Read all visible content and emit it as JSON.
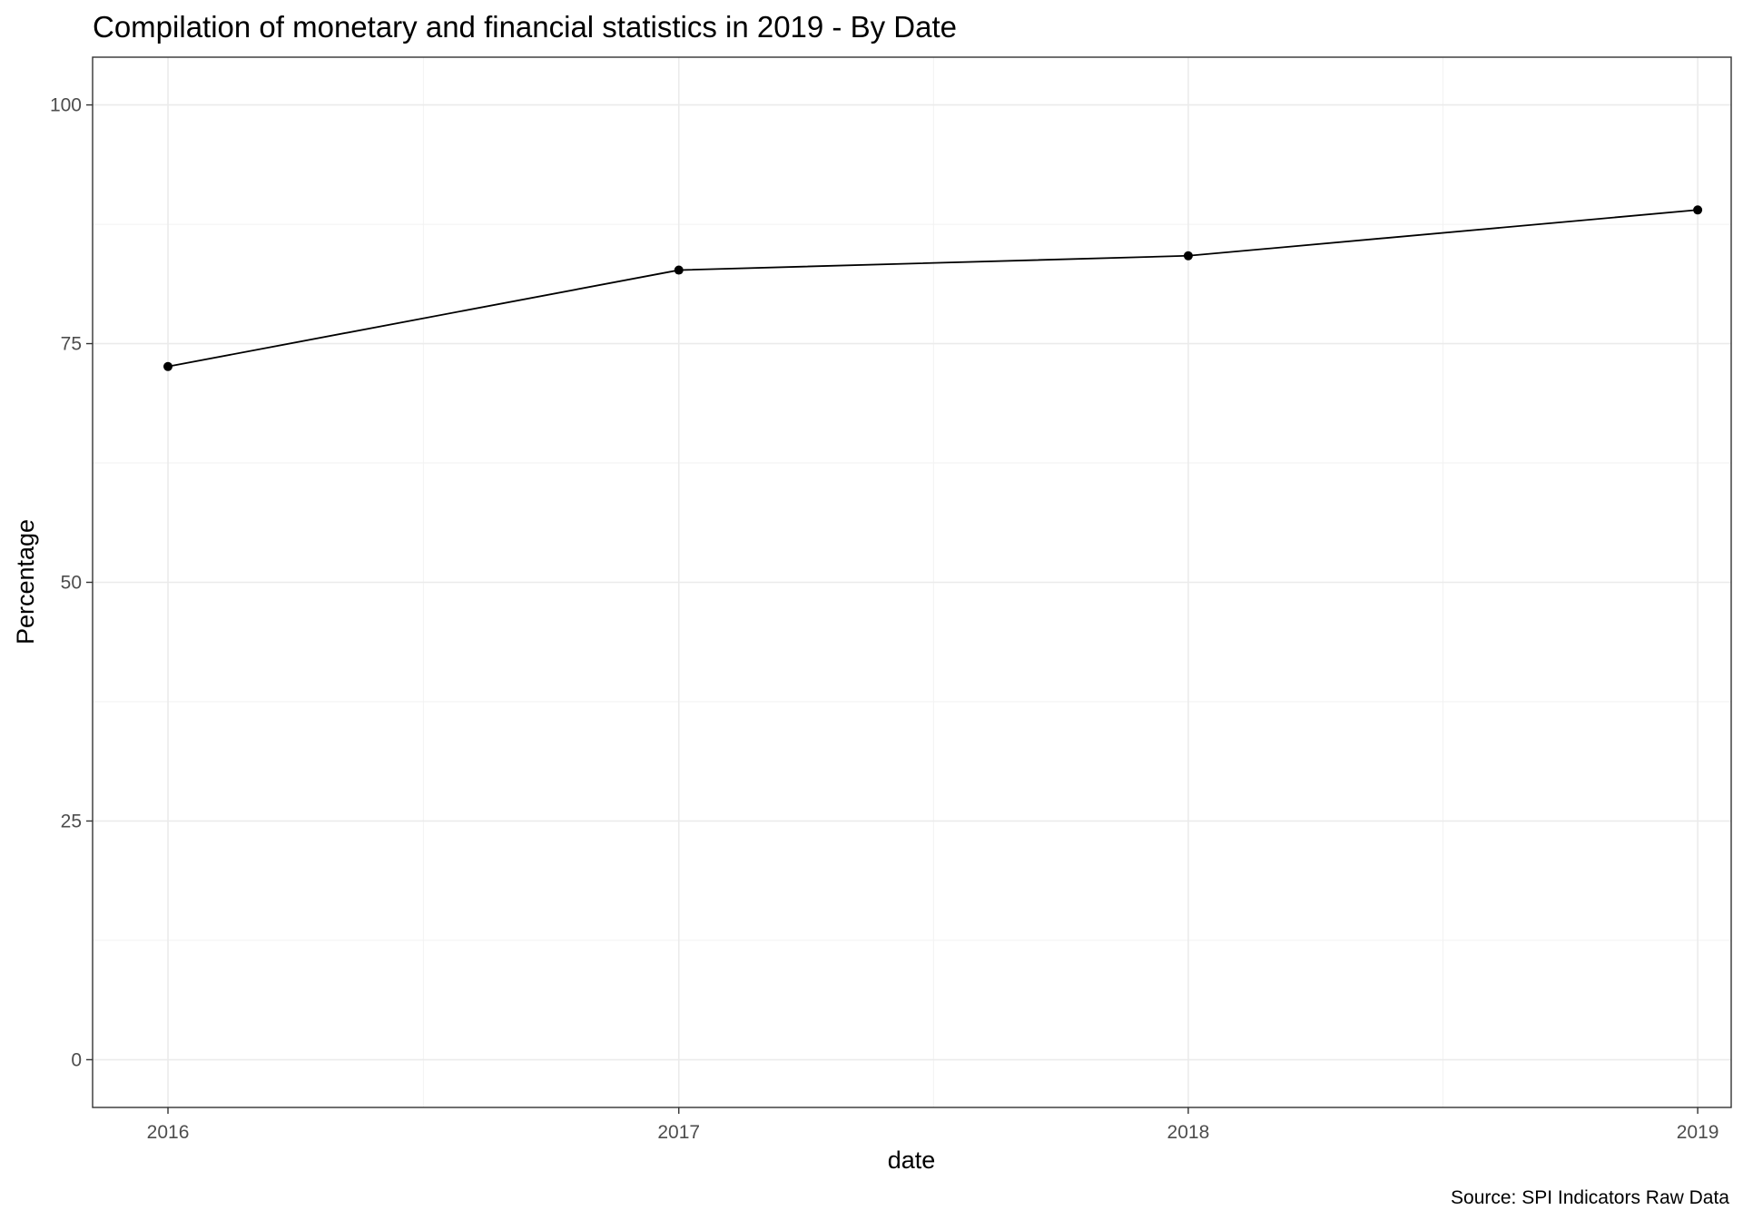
{
  "chart_data": {
    "type": "line",
    "title": "Compilation of monetary and financial statistics in 2019 - By Date",
    "xlabel": "date",
    "ylabel": "Percentage",
    "caption": "Source: SPI Indicators Raw Data",
    "x": [
      "2016",
      "2017",
      "2018",
      "2019"
    ],
    "y": [
      72.6,
      82.7,
      84.2,
      89.0
    ],
    "x_ticks": [
      "2016",
      "2017",
      "2018",
      "2019"
    ],
    "y_ticks": [
      "0",
      "25",
      "50",
      "75",
      "100"
    ],
    "xlim": [
      "2015-11-08",
      "2019-01-25"
    ],
    "ylim": [
      -5,
      105
    ],
    "grid": true,
    "legend": "none",
    "line_color": "#000000",
    "point_color": "#000000"
  }
}
